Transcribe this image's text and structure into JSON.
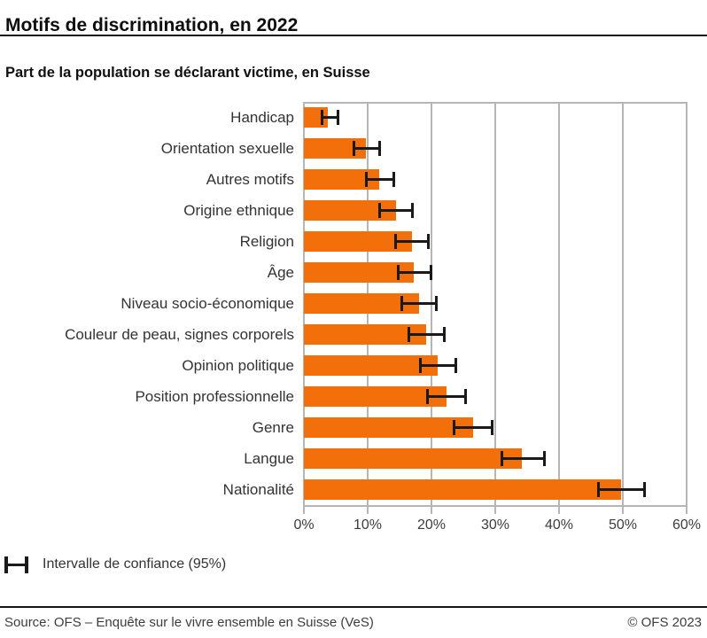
{
  "header": {
    "title": "Motifs de discrimination, en 2022",
    "subtitle": "Part de la population se déclarant victime, en Suisse"
  },
  "chart_data": {
    "type": "bar",
    "orientation": "horizontal",
    "title": "Motifs de discrimination, en 2022",
    "subtitle": "Part de la population se déclarant victime, en Suisse",
    "unit": "%",
    "categories": [
      "Handicap",
      "Orientation sexuelle",
      "Autres motifs",
      "Origine ethnique",
      "Religion",
      "Âge",
      "Niveau socio-économique",
      "Couleur de peau, signes corporels",
      "Opinion politique",
      "Position professionnelle",
      "Genre",
      "Langue",
      "Nationalité"
    ],
    "values": [
      3.7,
      9.7,
      11.8,
      14.5,
      16.9,
      17.2,
      18.0,
      19.1,
      21.0,
      22.3,
      26.5,
      34.2,
      49.7
    ],
    "ci_low": [
      2.6,
      7.6,
      9.6,
      11.7,
      14.2,
      14.6,
      15.2,
      16.3,
      18.1,
      19.2,
      23.3,
      30.8,
      46.0
    ],
    "ci_high": [
      5.5,
      12.1,
      14.3,
      17.2,
      19.7,
      20.1,
      21.0,
      22.2,
      24.0,
      25.5,
      29.7,
      37.9,
      53.6
    ],
    "xlim": [
      0,
      60
    ],
    "x_ticks": [
      "0%",
      "10%",
      "20%",
      "30%",
      "40%",
      "50%",
      "60%"
    ],
    "grid": true,
    "legend_position": "bottom-left",
    "colors": {
      "bar": "#f36f0a",
      "grid": "#b6b6b6",
      "error_bar": "#1a1a1a"
    }
  },
  "legend": {
    "label": "Intervalle de confiance (95%)"
  },
  "footer": {
    "source": "Source: OFS – Enquête sur le vivre ensemble en Suisse (VeS)",
    "copyright": "© OFS 2023"
  }
}
